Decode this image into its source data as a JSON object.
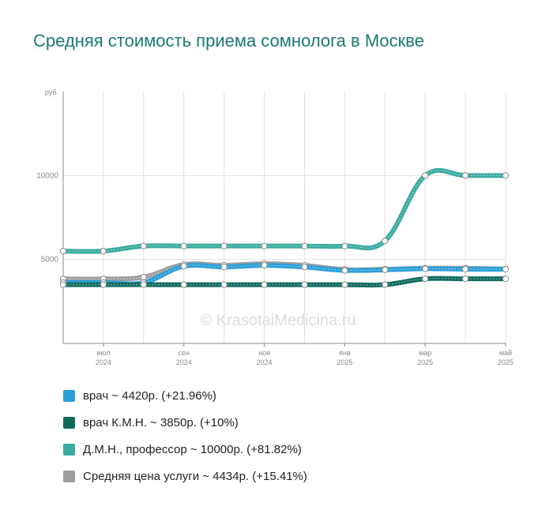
{
  "title": "Средняя стоимость приема сомнолога в Москве",
  "watermark": "© KrasotaiMedicina.ru",
  "chart_data": {
    "type": "line",
    "y_unit": "руб.",
    "ylim": [
      0,
      15000
    ],
    "yticks": [
      5000,
      10000
    ],
    "x": [
      "2024-06",
      "2024-07",
      "2024-08",
      "2024-09",
      "2024-10",
      "2024-11",
      "2024-12",
      "2025-01",
      "2025-02",
      "2025-03",
      "2025-04",
      "2025-05"
    ],
    "x_tick_labels": [
      {
        "index": 1,
        "month": "июл",
        "year": "2024"
      },
      {
        "index": 3,
        "month": "сен",
        "year": "2024"
      },
      {
        "index": 5,
        "month": "ноя",
        "year": "2024"
      },
      {
        "index": 7,
        "month": "янв",
        "year": "2025"
      },
      {
        "index": 9,
        "month": "мар",
        "year": "2025"
      },
      {
        "index": 11,
        "month": "май",
        "year": "2025"
      }
    ],
    "grid": true,
    "series": [
      {
        "name": "Д.М.Н., профессор",
        "color": "#3aaba0",
        "values": [
          5500,
          5500,
          5800,
          5800,
          5800,
          5800,
          5800,
          5800,
          6100,
          10000,
          10000,
          10000
        ]
      },
      {
        "name": "Средняя цена услуги",
        "color": "#9e9e9e",
        "values": [
          3842,
          3842,
          3950,
          4700,
          4650,
          4750,
          4650,
          4400,
          4420,
          4480,
          4480,
          4434
        ]
      },
      {
        "name": "врач",
        "color": "#2a9fd8",
        "values": [
          3624,
          3624,
          3624,
          4600,
          4550,
          4650,
          4550,
          4350,
          4380,
          4450,
          4420,
          4420
        ]
      },
      {
        "name": "врач К.М.Н.",
        "color": "#0f6b5e",
        "values": [
          3500,
          3500,
          3500,
          3500,
          3500,
          3500,
          3500,
          3500,
          3500,
          3850,
          3850,
          3850
        ]
      }
    ]
  },
  "legend": [
    {
      "label": "врач ~ 4420р. (+21.96%)",
      "color": "#2a9fd8"
    },
    {
      "label": "врач К.М.Н. ~ 3850р. (+10%)",
      "color": "#0f6b5e"
    },
    {
      "label": "Д.М.Н., профессор ~ 10000р. (+81.82%)",
      "color": "#3aaba0"
    },
    {
      "label": "Средняя цена услуги ~ 4434р. (+15.41%)",
      "color": "#9e9e9e"
    }
  ]
}
